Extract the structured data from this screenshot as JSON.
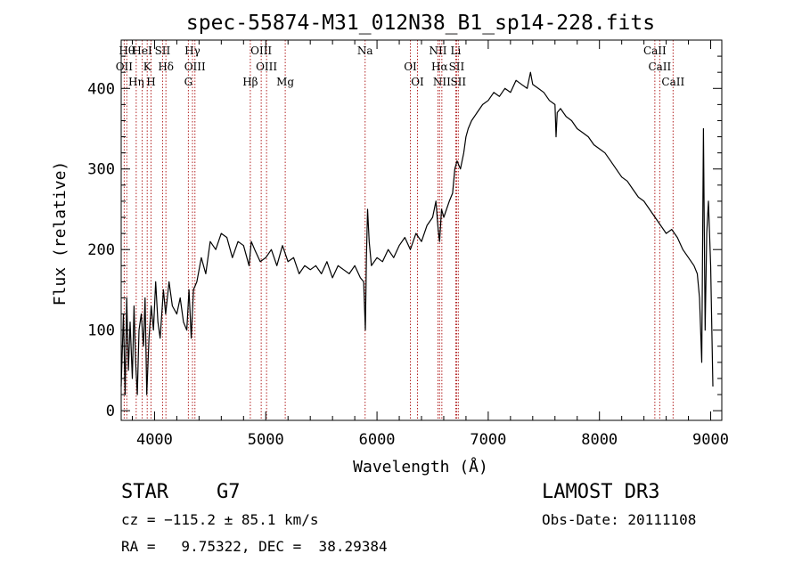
{
  "chart_data": {
    "type": "line",
    "title": "spec-55874-M31_012N38_B1_sp14-228.fits",
    "xlabel": "Wavelength (Å)",
    "ylabel": "Flux (relative)",
    "xlim": [
      3700,
      9100
    ],
    "ylim": [
      -12,
      460
    ],
    "x_ticks": [
      4000,
      5000,
      6000,
      7000,
      8000,
      9000
    ],
    "x_tick_labels": [
      "4000",
      "5000",
      "6000",
      "7000",
      "8000",
      "9000"
    ],
    "y_ticks": [
      0,
      100,
      200,
      300,
      400
    ],
    "y_tick_labels": [
      "0",
      "100",
      "200",
      "300",
      "400"
    ],
    "line_color": "#000000",
    "marker_color": "#b22222",
    "series": [
      {
        "name": "flux",
        "x": [
          3700,
          3720,
          3735,
          3750,
          3765,
          3780,
          3800,
          3815,
          3830,
          3845,
          3860,
          3880,
          3900,
          3915,
          3930,
          3950,
          3970,
          3990,
          4010,
          4030,
          4050,
          4080,
          4100,
          4130,
          4160,
          4200,
          4230,
          4260,
          4290,
          4310,
          4330,
          4350,
          4380,
          4420,
          4460,
          4500,
          4550,
          4600,
          4650,
          4700,
          4750,
          4800,
          4850,
          4870,
          4900,
          4950,
          5000,
          5050,
          5100,
          5150,
          5200,
          5250,
          5300,
          5350,
          5400,
          5450,
          5500,
          5550,
          5600,
          5650,
          5700,
          5750,
          5800,
          5850,
          5880,
          5895,
          5905,
          5915,
          5930,
          5950,
          6000,
          6050,
          6100,
          6150,
          6200,
          6250,
          6300,
          6350,
          6400,
          6450,
          6500,
          6530,
          6550,
          6563,
          6580,
          6600,
          6650,
          6680,
          6700,
          6720,
          6750,
          6780,
          6800,
          6820,
          6850,
          6900,
          6950,
          7000,
          7050,
          7100,
          7150,
          7200,
          7250,
          7300,
          7350,
          7380,
          7400,
          7450,
          7500,
          7550,
          7600,
          7610,
          7620,
          7650,
          7700,
          7750,
          7800,
          7850,
          7900,
          7950,
          8000,
          8050,
          8100,
          8150,
          8200,
          8250,
          8300,
          8350,
          8400,
          8450,
          8500,
          8550,
          8600,
          8650,
          8700,
          8750,
          8800,
          8850,
          8880,
          8900,
          8920,
          8935,
          8950,
          8965,
          8980,
          9000,
          9020
        ],
        "y": [
          30,
          120,
          20,
          140,
          50,
          110,
          40,
          130,
          60,
          20,
          100,
          120,
          80,
          140,
          20,
          90,
          130,
          100,
          160,
          110,
          90,
          150,
          120,
          160,
          130,
          120,
          140,
          110,
          100,
          150,
          90,
          150,
          160,
          190,
          170,
          210,
          200,
          220,
          215,
          190,
          210,
          205,
          180,
          210,
          200,
          185,
          190,
          200,
          180,
          205,
          185,
          190,
          170,
          180,
          175,
          180,
          170,
          185,
          165,
          180,
          175,
          170,
          180,
          165,
          160,
          100,
          190,
          250,
          210,
          180,
          190,
          185,
          200,
          190,
          205,
          215,
          200,
          220,
          210,
          230,
          240,
          260,
          225,
          210,
          250,
          240,
          260,
          270,
          300,
          310,
          300,
          320,
          340,
          350,
          360,
          370,
          380,
          385,
          395,
          390,
          400,
          395,
          410,
          405,
          400,
          420,
          405,
          400,
          395,
          385,
          380,
          340,
          370,
          375,
          365,
          360,
          350,
          345,
          340,
          330,
          325,
          320,
          310,
          300,
          290,
          285,
          275,
          265,
          260,
          250,
          240,
          230,
          220,
          225,
          215,
          200,
          190,
          180,
          170,
          140,
          60,
          350,
          100,
          220,
          260,
          180,
          30
        ]
      }
    ],
    "line_markers": [
      {
        "x": 3750,
        "label": "Hθ"
      },
      {
        "x": 3727,
        "label": "OII"
      },
      {
        "x": 3835,
        "label": "Hη"
      },
      {
        "x": 3889,
        "label": "HeI"
      },
      {
        "x": 3934,
        "label": "K"
      },
      {
        "x": 3968,
        "label": "H"
      },
      {
        "x": 4072,
        "label": "SII"
      },
      {
        "x": 4102,
        "label": "Hδ"
      },
      {
        "x": 4304,
        "label": "G"
      },
      {
        "x": 4341,
        "label": "Hγ"
      },
      {
        "x": 4363,
        "label": "OIII"
      },
      {
        "x": 4861,
        "label": "Hβ"
      },
      {
        "x": 4959,
        "label": "OIII"
      },
      {
        "x": 5007,
        "label": "OIII"
      },
      {
        "x": 5175,
        "label": "Mg"
      },
      {
        "x": 5893,
        "label": "Na"
      },
      {
        "x": 6300,
        "label": "OI"
      },
      {
        "x": 6364,
        "label": "OI"
      },
      {
        "x": 6548,
        "label": "NII"
      },
      {
        "x": 6563,
        "label": "Hα"
      },
      {
        "x": 6583,
        "label": "NII"
      },
      {
        "x": 6708,
        "label": "Li"
      },
      {
        "x": 6716,
        "label": "SII"
      },
      {
        "x": 6731,
        "label": "SII"
      },
      {
        "x": 8498,
        "label": "CaII"
      },
      {
        "x": 8542,
        "label": "CaII"
      },
      {
        "x": 8662,
        "label": "CaII"
      }
    ]
  },
  "info": {
    "class_label": "STAR",
    "subclass": "G7",
    "survey": "LAMOST DR3",
    "cz_text": "cz = −115.2 ± 85.1 km/s",
    "obs_date": "Obs-Date: 20111108",
    "coords": "RA =   9.75322, DEC =  38.29384"
  }
}
